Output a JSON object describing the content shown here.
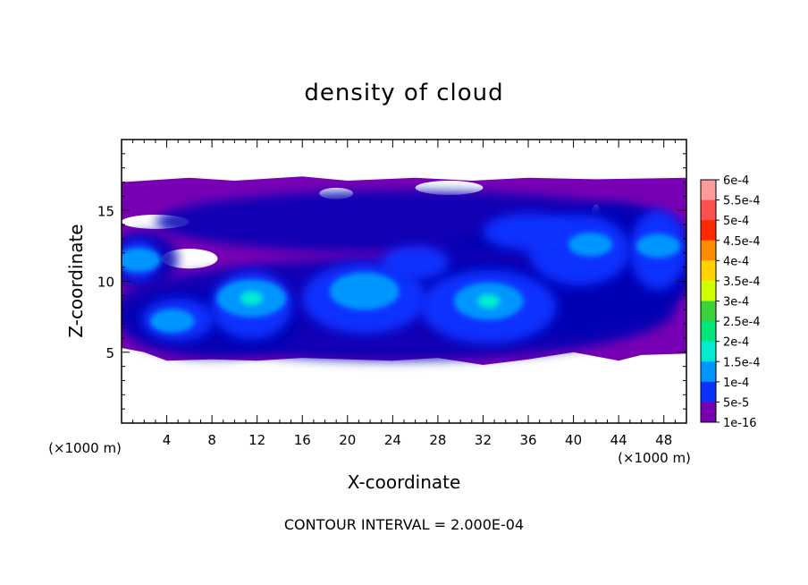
{
  "chart_data": {
    "type": "heatmap",
    "title": "density of cloud",
    "xlabel": "X-coordinate",
    "ylabel": "Z-coordinate",
    "x_unit_left": "(×1000 m)",
    "x_unit_right": "(×1000 m)",
    "footer": "CONTOUR INTERVAL = 2.000E-04",
    "xlim": [
      0,
      50
    ],
    "ylim": [
      0,
      20
    ],
    "x_ticks": [
      4,
      8,
      12,
      16,
      20,
      24,
      28,
      32,
      36,
      40,
      44,
      48
    ],
    "y_ticks": [
      5,
      10,
      15
    ],
    "colorbar": {
      "labels": [
        "6e-4",
        "5.5e-4",
        "5e-4",
        "4.5e-4",
        "4e-4",
        "3.5e-4",
        "3e-4",
        "2.5e-4",
        "2e-4",
        "1.5e-4",
        "1e-4",
        "5e-5",
        "1e-16"
      ],
      "colors": [
        "#ff9a9a",
        "#ff5050",
        "#ff2800",
        "#ff8c00",
        "#ffd200",
        "#d2ff00",
        "#3cd23c",
        "#00e678",
        "#00ebd2",
        "#0096ff",
        "#0a32ff",
        "#0000b4",
        "#7800b4"
      ]
    },
    "cloud_layer": {
      "z_bottom": 5,
      "z_top": 17.3,
      "dense_cores": [
        {
          "x": 4.5,
          "z": 7.2,
          "value": 0.00012
        },
        {
          "x": 11.5,
          "z": 8.8,
          "value": 0.00018
        },
        {
          "x": 21.5,
          "z": 9.3,
          "value": 0.00016
        },
        {
          "x": 32.5,
          "z": 8.6,
          "value": 0.00019
        },
        {
          "x": 41.5,
          "z": 12.6,
          "value": 0.00012
        },
        {
          "x": 47.5,
          "z": 12.5,
          "value": 0.00013
        },
        {
          "x": 1.5,
          "z": 11.5,
          "value": 0.0001
        }
      ]
    }
  }
}
